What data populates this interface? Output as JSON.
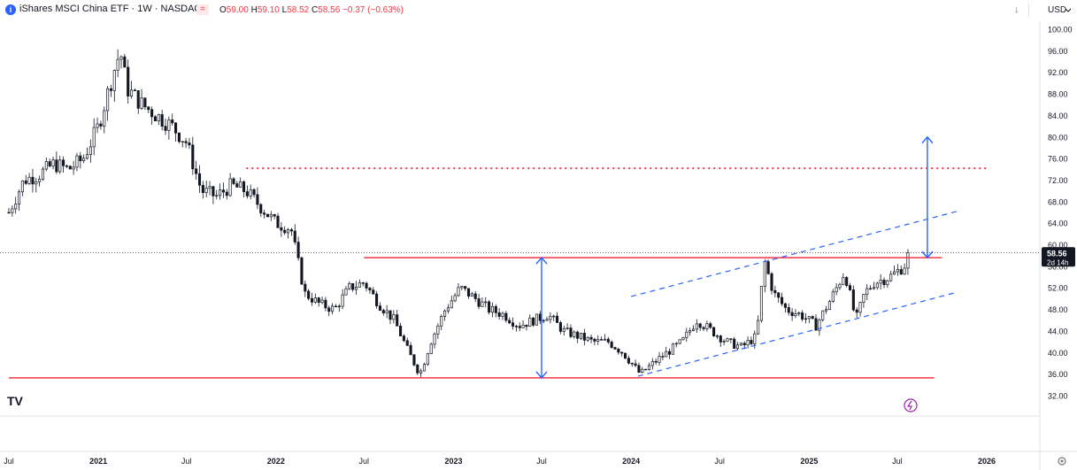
{
  "header": {
    "symbol_icon": "i",
    "title": "iShares MSCI China ETF · 1W · NASDAQ",
    "badge": "=",
    "ohlc": {
      "o_label": "O",
      "o": "59.00",
      "h_label": "H",
      "h": "59.10",
      "l_label": "L",
      "l": "58.52",
      "c_label": "C",
      "c": "58.56",
      "change": "−0.37 (−0.63%)"
    },
    "down_arrow": "↓",
    "currency": "USD",
    "chevron_icon": "chevron-down-icon"
  },
  "price_tag": {
    "price": "58.56",
    "countdown": "2d 14h"
  },
  "logo_text": "TV",
  "settings_icon": "gear-icon",
  "colors": {
    "up": "#131722",
    "down": "#131722",
    "red": "#f23645",
    "blue": "#2962ff",
    "grid": "#f0f3fa"
  },
  "chart_data": {
    "type": "candlestick",
    "interval": "1W",
    "ylim": [
      31,
      101
    ],
    "y_ticks": [
      "100.00",
      "96.00",
      "92.00",
      "88.00",
      "84.00",
      "80.00",
      "76.00",
      "72.00",
      "68.00",
      "64.00",
      "60.00",
      "56.00",
      "52.00",
      "48.00",
      "44.00",
      "40.00",
      "36.00",
      "32.00"
    ],
    "x_ticks": [
      "Jul",
      "2021",
      "Jul",
      "2022",
      "Jul",
      "2023",
      "Jul",
      "2024",
      "Jul",
      "2025",
      "Jul",
      "2026"
    ],
    "x_tick_dates": [
      "2020-07-01",
      "2021-01-01",
      "2021-07-01",
      "2022-01-01",
      "2022-07-01",
      "2023-01-01",
      "2023-07-01",
      "2024-01-01",
      "2024-07-01",
      "2025-01-01",
      "2025-07-01",
      "2026-01-01"
    ],
    "last_price": 58.56,
    "price_path": [
      [
        "2020-07-01",
        66
      ],
      [
        "2020-08-01",
        72
      ],
      [
        "2020-09-01",
        73
      ],
      [
        "2020-10-01",
        75
      ],
      [
        "2020-11-01",
        74
      ],
      [
        "2020-12-01",
        76
      ],
      [
        "2021-01-01",
        82
      ],
      [
        "2021-02-01",
        92
      ],
      [
        "2021-02-15",
        96
      ],
      [
        "2021-03-01",
        89
      ],
      [
        "2021-04-01",
        86
      ],
      [
        "2021-05-01",
        84
      ],
      [
        "2021-06-01",
        82
      ],
      [
        "2021-07-01",
        79
      ],
      [
        "2021-08-01",
        70
      ],
      [
        "2021-09-01",
        69
      ],
      [
        "2021-10-01",
        71
      ],
      [
        "2021-11-01",
        70
      ],
      [
        "2021-12-01",
        67
      ],
      [
        "2022-01-01",
        64
      ],
      [
        "2022-02-01",
        63
      ],
      [
        "2022-03-01",
        51
      ],
      [
        "2022-04-01",
        49
      ],
      [
        "2022-05-01",
        48
      ],
      [
        "2022-06-01",
        52
      ],
      [
        "2022-07-01",
        53
      ],
      [
        "2022-08-01",
        49
      ],
      [
        "2022-09-01",
        46
      ],
      [
        "2022-10-01",
        40
      ],
      [
        "2022-10-24",
        36
      ],
      [
        "2022-11-15",
        42
      ],
      [
        "2022-12-15",
        48
      ],
      [
        "2023-01-15",
        52
      ],
      [
        "2023-02-15",
        50
      ],
      [
        "2023-03-15",
        48
      ],
      [
        "2023-04-15",
        47
      ],
      [
        "2023-05-15",
        45
      ],
      [
        "2023-06-15",
        46
      ],
      [
        "2023-07-15",
        47
      ],
      [
        "2023-08-15",
        44
      ],
      [
        "2023-09-15",
        43
      ],
      [
        "2023-10-15",
        42
      ],
      [
        "2023-11-15",
        42
      ],
      [
        "2023-12-15",
        40
      ],
      [
        "2024-01-20",
        36
      ],
      [
        "2024-02-15",
        38
      ],
      [
        "2024-03-15",
        40
      ],
      [
        "2024-04-15",
        42
      ],
      [
        "2024-05-15",
        46
      ],
      [
        "2024-06-15",
        44
      ],
      [
        "2024-07-15",
        42
      ],
      [
        "2024-08-15",
        41
      ],
      [
        "2024-09-15",
        43
      ],
      [
        "2024-10-01",
        57
      ],
      [
        "2024-10-20",
        51
      ],
      [
        "2024-11-15",
        48
      ],
      [
        "2024-12-15",
        47
      ],
      [
        "2025-01-15",
        45
      ],
      [
        "2025-02-15",
        50
      ],
      [
        "2025-03-15",
        55
      ],
      [
        "2025-04-07",
        46
      ],
      [
        "2025-04-25",
        51
      ],
      [
        "2025-05-15",
        53
      ],
      [
        "2025-06-15",
        54
      ],
      [
        "2025-07-15",
        56
      ],
      [
        "2025-07-28",
        58.56
      ]
    ],
    "annotations": {
      "resistance_line": {
        "y": 57.6,
        "x": [
          "2022-07-01",
          "2025-10-01"
        ]
      },
      "support_line": {
        "y": 35.3,
        "x": [
          "2020-07-01",
          "2025-09-15"
        ]
      },
      "target_line": {
        "y": 74.2,
        "x": [
          "2021-11-01",
          "2026-01-06"
        ],
        "style": "dotted"
      },
      "channel_upper": {
        "from": [
          "2024-01-01",
          50.4
        ],
        "to": [
          "2025-11-01",
          66.2
        ],
        "style": "dashed"
      },
      "channel_lower": {
        "from": [
          "2024-01-15",
          35.6
        ],
        "to": [
          "2025-11-01",
          51.2
        ],
        "style": "dashed"
      },
      "measure_arrow_1": {
        "x": "2023-07-01",
        "y": [
          35.3,
          57.6
        ]
      },
      "measure_arrow_2": {
        "x": "2025-09-01",
        "y": [
          57.6,
          80.0
        ]
      }
    }
  }
}
